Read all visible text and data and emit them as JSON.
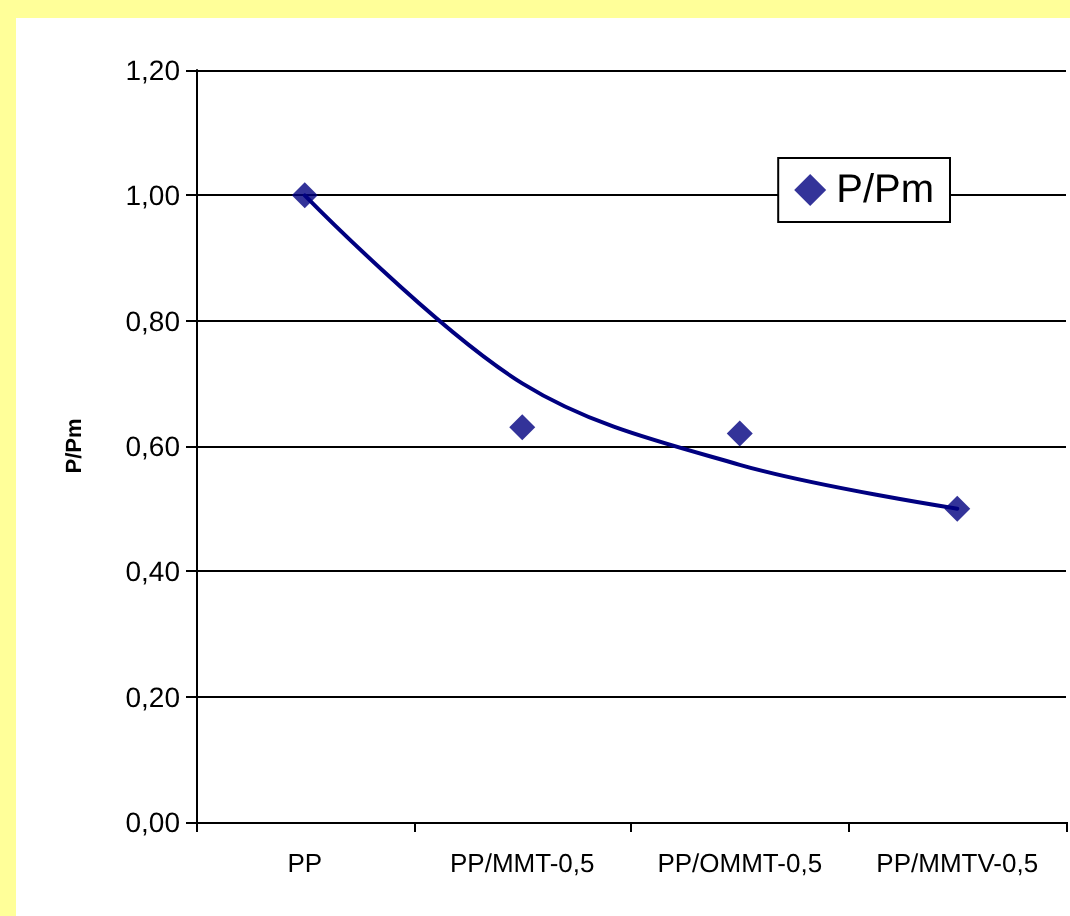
{
  "chart_data": {
    "type": "scatter",
    "ylabel": "P/Pm",
    "categories": [
      "PP",
      "PP/MMT-0,5",
      "PP/OMMT-0,5",
      "PP/MMTV-0,5"
    ],
    "series": [
      {
        "name": "P/Pm",
        "color": "#000080",
        "values": [
          1.0,
          0.63,
          0.62,
          0.5
        ],
        "marker": "diamond"
      },
      {
        "type": "line",
        "color": "#000080",
        "values": [
          1.0,
          0.7,
          0.57,
          0.5
        ],
        "marker": "none",
        "line_style": "solid"
      }
    ],
    "ylim": [
      0,
      1.2
    ],
    "yticks": [
      {
        "value": 0,
        "label": "0,00"
      },
      {
        "value": 0.2,
        "label": "0,20"
      },
      {
        "value": 0.4,
        "label": "0,40"
      },
      {
        "value": 0.6,
        "label": "0,60"
      },
      {
        "value": 0.8,
        "label": "0,80"
      },
      {
        "value": 1.0,
        "label": "1,00"
      },
      {
        "value": 1.2,
        "label": "1,20"
      }
    ],
    "grid": "y",
    "legend": "top right"
  }
}
